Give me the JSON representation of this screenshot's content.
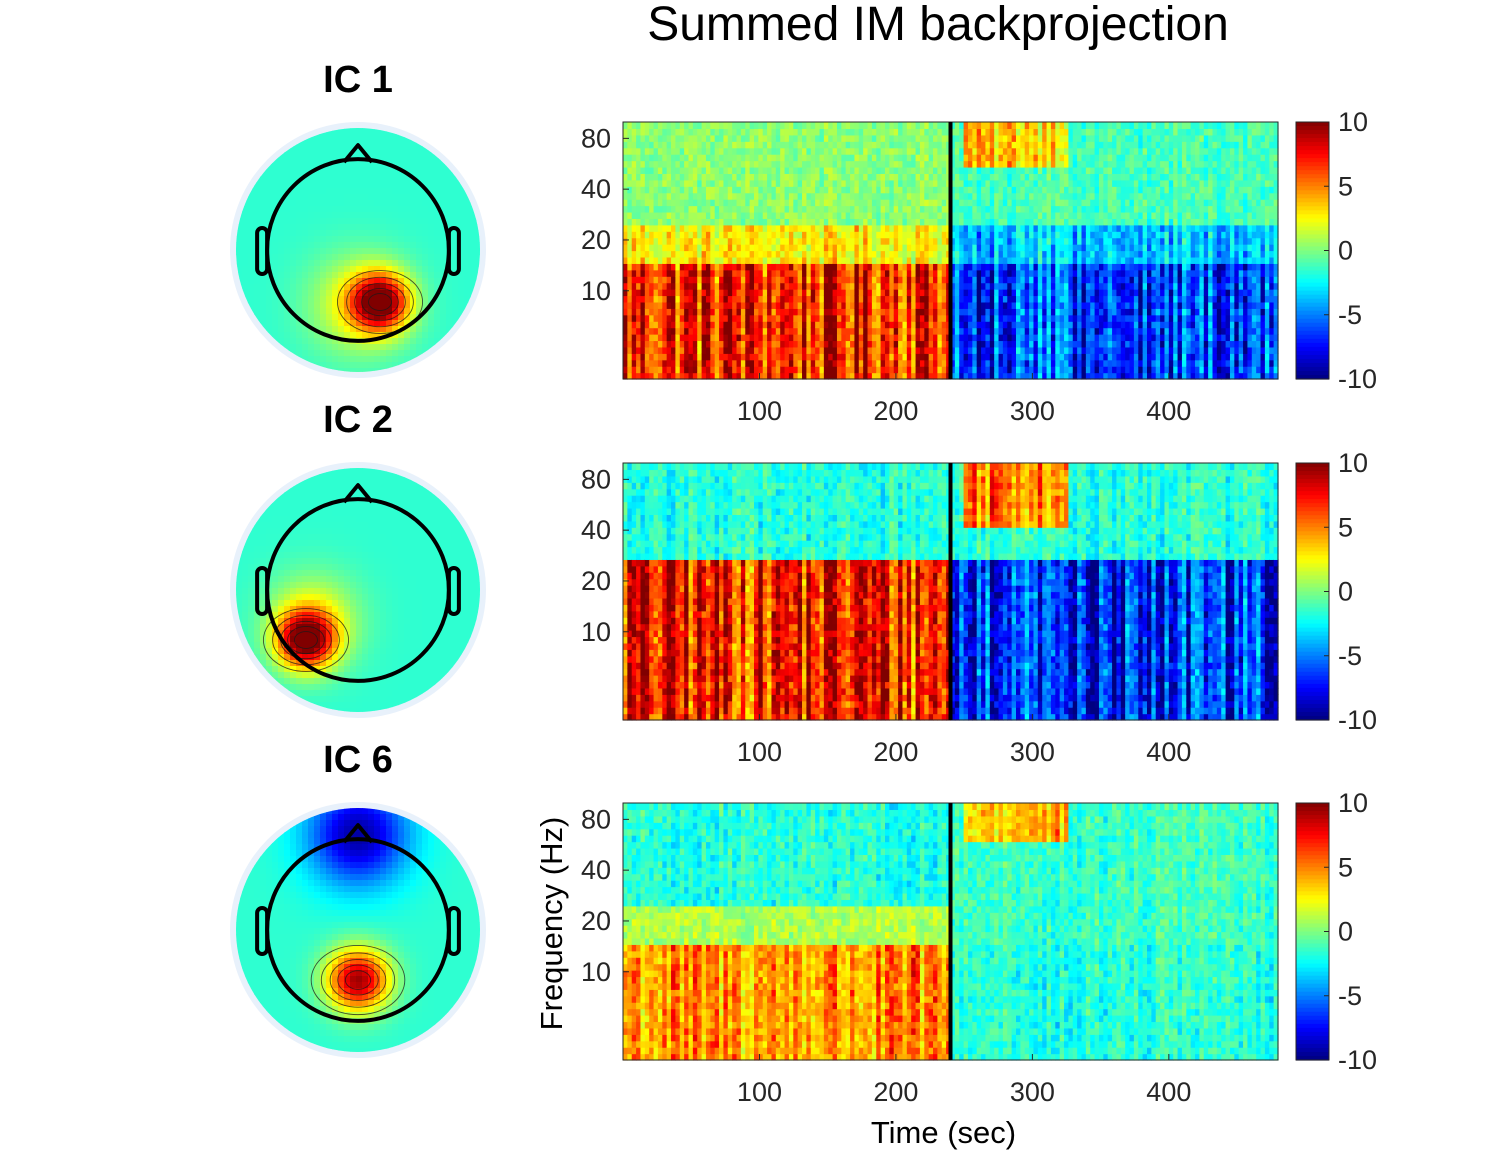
{
  "title": "Summed IM backprojection",
  "colors": {
    "head_outline": "#000000",
    "contour": "#1a1a1a",
    "onset_line": "#000000",
    "colormap": "jet"
  },
  "icons": [
    "ic1-scalp-map",
    "ic2-scalp-map",
    "ic6-scalp-map"
  ],
  "chart_data": [
    {
      "type": "heatmap",
      "component": "IC 1",
      "title": "IC 1",
      "xlabel": "",
      "ylabel": "",
      "xlim": [
        0,
        480
      ],
      "ylim": [
        3,
        100
      ],
      "y_scale": "log",
      "x_ticks": [
        "100",
        "200",
        "300",
        "400"
      ],
      "y_ticks": [
        "10",
        "20",
        "40",
        "80"
      ],
      "colorbar": {
        "range": [
          -10,
          10
        ],
        "ticks": [
          "10",
          "5",
          "0",
          "-5",
          "-10"
        ]
      },
      "event_line_x": 240,
      "scalp_map": {
        "blobs": [
          {
            "x": 0.22,
            "y": 0.52,
            "strength": 1.0,
            "spread": 0.2
          },
          {
            "x": 0.0,
            "y": 0.55,
            "strength": 0.35,
            "spread": 0.35
          }
        ]
      },
      "pattern": {
        "before_event": {
          "3-15 Hz": "strong positive (~ +8)",
          "15-25 Hz": "positive (~ +3)",
          "25-100 Hz": "near zero (~ 0)"
        },
        "after_event": {
          "3-15 Hz": "strong negative (~ -7)",
          "15-25 Hz": "negative (~ -4)",
          "60-100 Hz, 250-325 s": "positive (~ +4)"
        }
      }
    },
    {
      "type": "heatmap",
      "component": "IC 2",
      "title": "IC 2",
      "xlabel": "",
      "ylabel": "",
      "xlim": [
        0,
        480
      ],
      "ylim": [
        3,
        100
      ],
      "y_scale": "log",
      "x_ticks": [
        "100",
        "200",
        "300",
        "400"
      ],
      "y_ticks": [
        "10",
        "20",
        "40",
        "80"
      ],
      "colorbar": {
        "range": [
          -10,
          10
        ],
        "ticks": [
          "10",
          "5",
          "0",
          "-5",
          "-10"
        ]
      },
      "event_line_x": 240,
      "scalp_map": {
        "blobs": [
          {
            "x": -0.52,
            "y": 0.5,
            "strength": 1.0,
            "spread": 0.2
          },
          {
            "x": -0.45,
            "y": 0.3,
            "strength": 0.35,
            "spread": 0.32
          }
        ]
      },
      "pattern": {
        "before_event": {
          "3-27 Hz": "strong positive (~ +8)",
          "27-100 Hz": "slightly negative (~ -2)"
        },
        "after_event": {
          "3-27 Hz": "strong negative (~ -8)",
          "40-100 Hz, 250-325 s": "strong positive (~ +6)"
        }
      }
    },
    {
      "type": "heatmap",
      "component": "IC 6",
      "title": "IC 6",
      "xlabel": "Time (sec)",
      "ylabel": "Frequency (Hz)",
      "xlim": [
        0,
        480
      ],
      "ylim": [
        3,
        100
      ],
      "y_scale": "log",
      "x_ticks": [
        "100",
        "200",
        "300",
        "400"
      ],
      "y_ticks": [
        "10",
        "20",
        "40",
        "80"
      ],
      "colorbar": {
        "range": [
          -10,
          10
        ],
        "ticks": [
          "10",
          "5",
          "0",
          "-5",
          "-10"
        ]
      },
      "event_line_x": 240,
      "scalp_map": {
        "blobs": [
          {
            "x": 0.0,
            "y": 0.5,
            "strength": 1.0,
            "spread": 0.22
          },
          {
            "x": 0.0,
            "y": -0.95,
            "strength": -0.7,
            "spread": 0.35
          }
        ]
      },
      "pattern": {
        "before_event": {
          "3-15 Hz": "positive (~ +5)",
          "15-25 Hz": "slightly positive (~ +1)",
          "25-100 Hz": "slightly negative (~ -2)"
        },
        "after_event": {
          "3-15 Hz": "slightly negative (~ -2)",
          "60-100 Hz, 250-325 s": "positive (~ +4)"
        }
      }
    }
  ]
}
